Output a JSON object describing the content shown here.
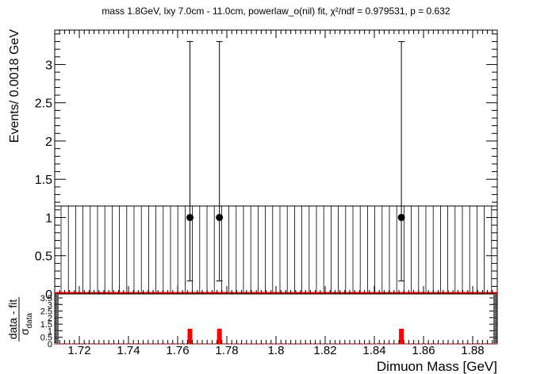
{
  "chart_data": {
    "type": "scatter",
    "title": "mass 1.8GeV, lxy 7.0cm - 11.0cm, powerlaw_o(nil) fit, χ²/ndf = 0.979531, p = 0.632",
    "ylabel": "Events/ 0.0018 GeV",
    "xlabel": "Dimuon Mass [GeV]",
    "xlim": [
      1.71,
      1.89
    ],
    "ylim": [
      0,
      3.45
    ],
    "x_ticks": [
      "1.72",
      "1.74",
      "1.76",
      "1.78",
      "1.8",
      "1.82",
      "1.84",
      "1.86",
      "1.88"
    ],
    "y_ticks": [
      "0",
      "0.5",
      "1",
      "1.5",
      "2",
      "2.5",
      "3"
    ],
    "grid": false,
    "data_points": [
      {
        "x": 1.765,
        "y": 1,
        "y_low": 0.17,
        "y_high": 3.3
      },
      {
        "x": 1.777,
        "y": 1,
        "y_low": 0.17,
        "y_high": 3.3
      },
      {
        "x": 1.851,
        "y": 1,
        "y_low": 0.17,
        "y_high": 3.3
      }
    ],
    "fit_band": {
      "y_low": 0,
      "y_high": 1.15
    },
    "fit_curve_y": 0.01,
    "colors": {
      "fit": "#ff0000",
      "data": "#000000",
      "band": "#000000"
    },
    "pull_panel": {
      "ylabel_num": "data - fit",
      "ylabel_den": "σ",
      "ylabel_den_sub": "data",
      "y_ticks": [
        "0",
        "0.5",
        "1",
        "1.5",
        "2",
        "2.5",
        "3",
        "3.5"
      ],
      "ylim": [
        0,
        3.8
      ],
      "pulls": [
        {
          "x": 1.765,
          "value": 1.15
        },
        {
          "x": 1.777,
          "value": 1.15
        },
        {
          "x": 1.851,
          "value": 1.15
        }
      ]
    }
  }
}
